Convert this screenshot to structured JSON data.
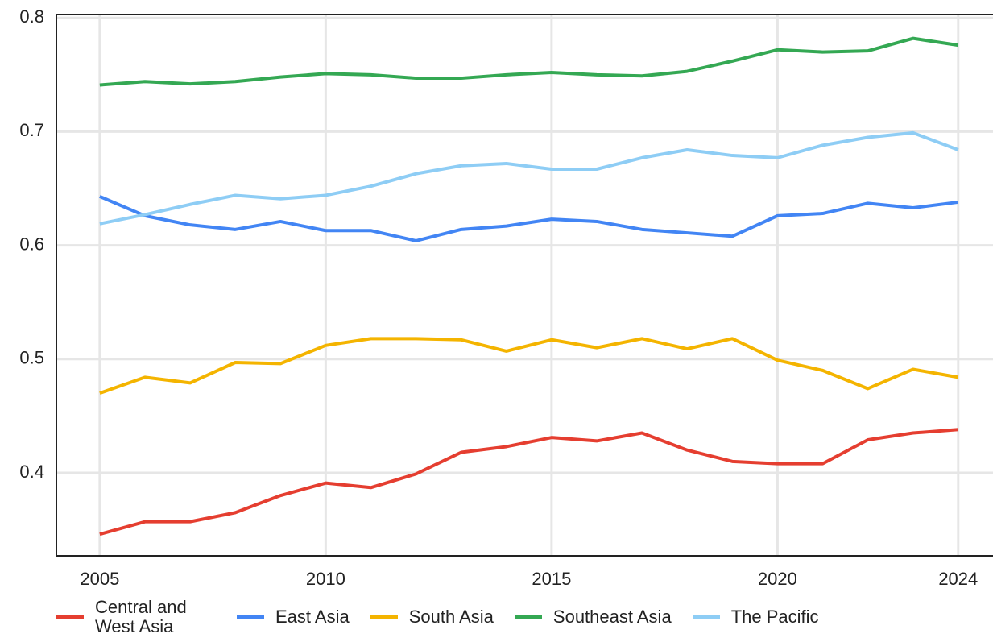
{
  "chart_data": {
    "type": "line",
    "x": [
      2005,
      2006,
      2007,
      2008,
      2009,
      2010,
      2011,
      2012,
      2013,
      2014,
      2015,
      2016,
      2017,
      2018,
      2019,
      2020,
      2021,
      2022,
      2023,
      2024
    ],
    "series": [
      {
        "name": "Central and West Asia",
        "color": "#e53e30",
        "values": [
          0.346,
          0.357,
          0.357,
          0.365,
          0.38,
          0.391,
          0.387,
          0.399,
          0.418,
          0.423,
          0.431,
          0.428,
          0.435,
          0.42,
          0.41,
          0.408,
          0.408,
          0.429,
          0.435,
          0.438
        ]
      },
      {
        "name": "East Asia",
        "color": "#4285f4",
        "values": [
          0.643,
          0.626,
          0.618,
          0.614,
          0.621,
          0.613,
          0.613,
          0.604,
          0.614,
          0.617,
          0.623,
          0.621,
          0.614,
          0.611,
          0.608,
          0.626,
          0.628,
          0.637,
          0.633,
          0.638
        ]
      },
      {
        "name": "South Asia",
        "color": "#f4b400",
        "values": [
          0.47,
          0.484,
          0.479,
          0.497,
          0.496,
          0.512,
          0.518,
          0.518,
          0.517,
          0.507,
          0.517,
          0.51,
          0.518,
          0.509,
          0.518,
          0.499,
          0.49,
          0.474,
          0.491,
          0.484
        ]
      },
      {
        "name": "Southeast Asia",
        "color": "#34a853",
        "values": [
          0.741,
          0.744,
          0.742,
          0.744,
          0.748,
          0.751,
          0.75,
          0.747,
          0.747,
          0.75,
          0.752,
          0.75,
          0.749,
          0.753,
          0.762,
          0.772,
          0.77,
          0.771,
          0.782,
          0.776
        ]
      },
      {
        "name": "The Pacific",
        "color": "#8ecdf5",
        "values": [
          0.619,
          0.627,
          0.636,
          0.644,
          0.641,
          0.644,
          0.652,
          0.663,
          0.67,
          0.672,
          0.667,
          0.667,
          0.677,
          0.684,
          0.679,
          0.677,
          0.688,
          0.695,
          0.699,
          0.684
        ]
      }
    ],
    "xlim": [
      2004.04,
      2024.77
    ],
    "xticks": [
      2005,
      2010,
      2015,
      2020,
      2024
    ],
    "ylim": [
      0.327,
      0.803
    ],
    "yticks": [
      0.4,
      0.5,
      0.6,
      0.7,
      0.8
    ],
    "grid": true
  }
}
